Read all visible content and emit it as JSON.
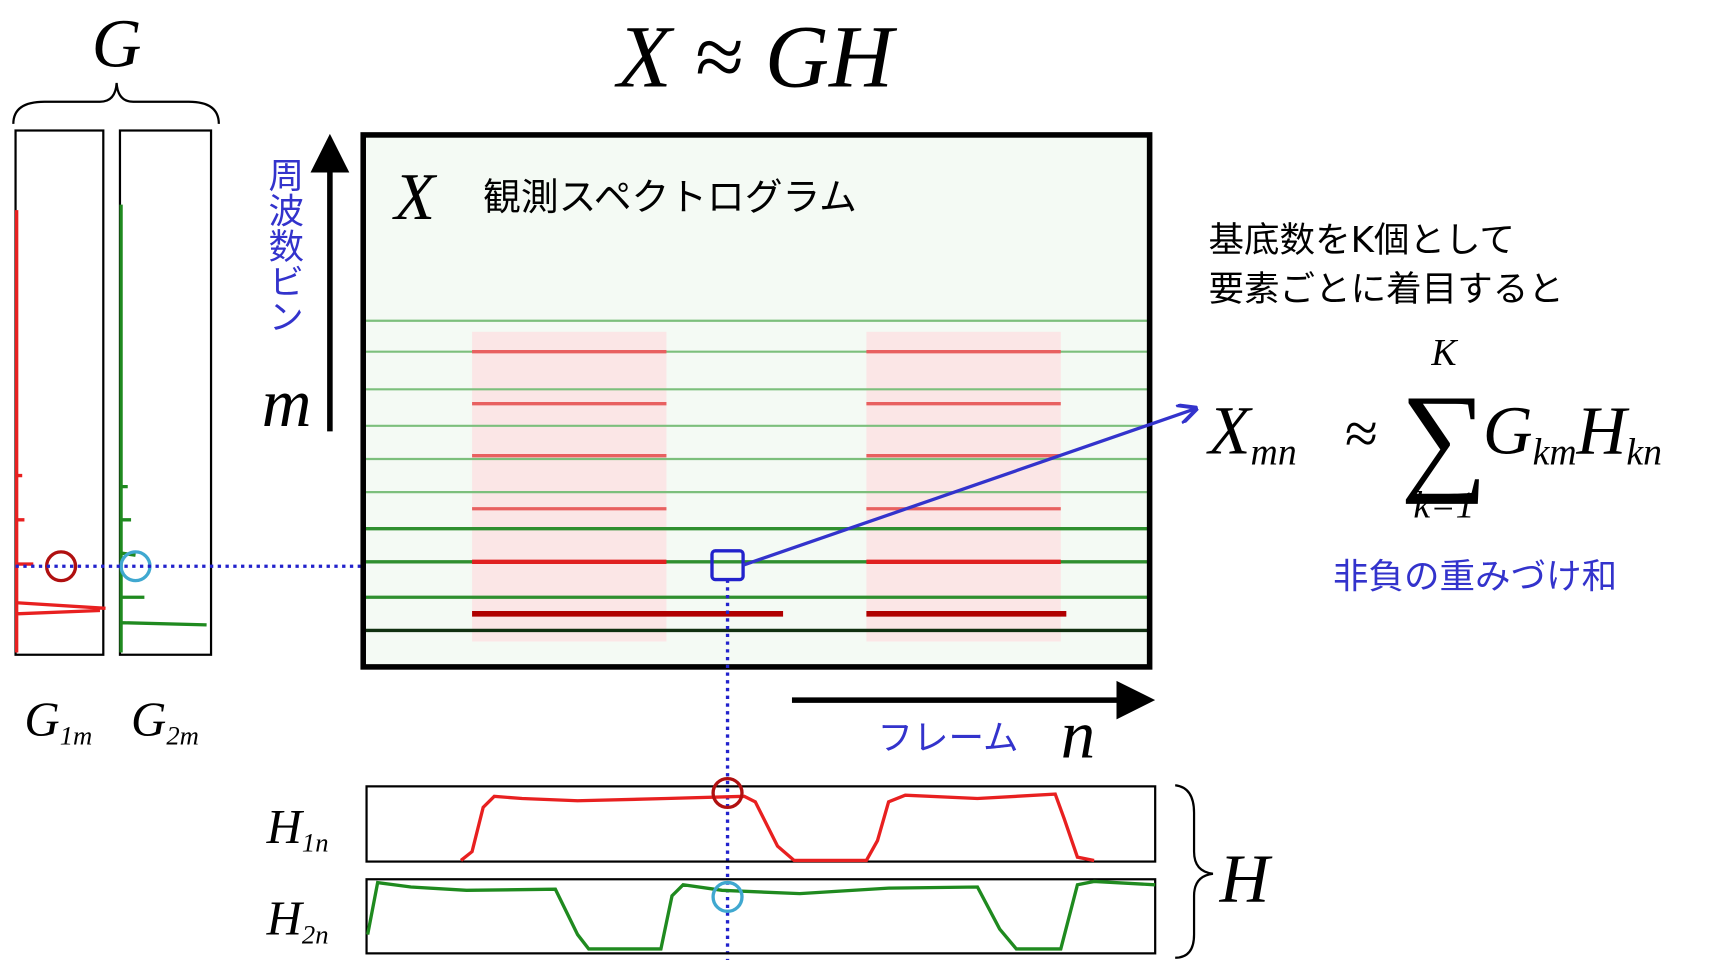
{
  "title": {
    "lhs": "X",
    "approx": "≈",
    "rhs": "GH"
  },
  "g_label": "G",
  "g_columns": [
    "G",
    "G"
  ],
  "g_subscripts": [
    "1m",
    "2m"
  ],
  "spectrogram": {
    "symbol": "X",
    "label": "観測スペクトログラム"
  },
  "frequency_axis": {
    "label": "周波数ビン",
    "symbol": "m"
  },
  "frame_axis": {
    "label": "フレーム",
    "symbol": "n"
  },
  "h_rows": [
    "H",
    "H"
  ],
  "h_subscripts": [
    "1n",
    "2n"
  ],
  "h_label": "H",
  "note": [
    "基底数をK個として",
    "要素ごとに着目すると"
  ],
  "formula": {
    "lhs": "X",
    "lhs_sub": "mn",
    "approx": "≈",
    "sum": "∑",
    "upper": "K",
    "lower": "k=1",
    "g": "G",
    "g_sub": "km",
    "h": "H",
    "h_sub": "kn"
  },
  "caption": "非負の重みづけ和"
}
